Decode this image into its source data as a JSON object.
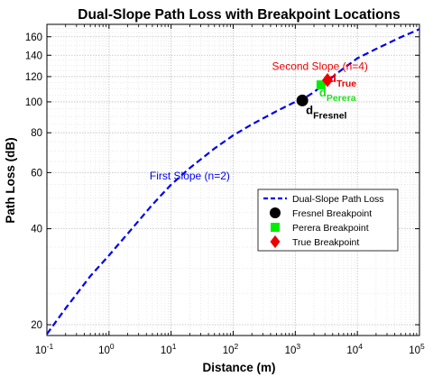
{
  "chart_data": {
    "type": "line",
    "title": "Dual-Slope Path Loss with Breakpoint Locations",
    "xlabel": "Distance (m)",
    "ylabel": "Path Loss (dB)",
    "xscale": "log",
    "yscale": "log",
    "xlim": [
      0.1,
      100000
    ],
    "ylim": [
      18.5,
      175
    ],
    "grid": true,
    "grid_minor": true,
    "x_ticks": [
      {
        "value": 0.1,
        "base": "10",
        "exp": "-1"
      },
      {
        "value": 1,
        "base": "10",
        "exp": "0"
      },
      {
        "value": 10,
        "base": "10",
        "exp": "1"
      },
      {
        "value": 100,
        "base": "10",
        "exp": "2"
      },
      {
        "value": 1000,
        "base": "10",
        "exp": "3"
      },
      {
        "value": 10000,
        "base": "10",
        "exp": "4"
      },
      {
        "value": 100000,
        "base": "10",
        "exp": "5"
      }
    ],
    "y_ticks": [
      20,
      40,
      60,
      80,
      100,
      120,
      140,
      160
    ],
    "series": [
      {
        "name": "Dual-Slope Path Loss",
        "style": "dashed",
        "color": "#0000ee",
        "points": [
          [
            0.1,
            18.7
          ],
          [
            0.2,
            22.5
          ],
          [
            0.5,
            28.4
          ],
          [
            1,
            33.0
          ],
          [
            2,
            38.6
          ],
          [
            5,
            47.6
          ],
          [
            10,
            55.0
          ],
          [
            20,
            62.0
          ],
          [
            50,
            71.4
          ],
          [
            100,
            78.5
          ],
          [
            200,
            85.0
          ],
          [
            500,
            93.5
          ],
          [
            1000,
            100.0
          ],
          [
            1500,
            103.5
          ],
          [
            2000,
            107.3
          ],
          [
            3000,
            114.5
          ],
          [
            5000,
            124.0
          ],
          [
            10000,
            137.0
          ],
          [
            20000,
            146.5
          ],
          [
            50000,
            159.5
          ],
          [
            100000,
            169.0
          ]
        ]
      }
    ],
    "markers": [
      {
        "name": "Fresnel Breakpoint",
        "x": 1300,
        "y": 101,
        "shape": "circle",
        "color": "#000000",
        "label_main": "d",
        "label_sub": "Fresnel",
        "label_color": "#000000"
      },
      {
        "name": "Perera Breakpoint",
        "x": 2600,
        "y": 113,
        "shape": "square",
        "color": "#00ee00",
        "label_main": "d",
        "label_sub": "Perera",
        "label_color": "#22dd22"
      },
      {
        "name": "True Breakpoint",
        "x": 3300,
        "y": 117,
        "shape": "diamond",
        "color": "#ee0000",
        "label_main": "d",
        "label_sub": "True",
        "label_color": "#ee0000"
      }
    ],
    "annotations": [
      {
        "text": "First Slope (n=2)",
        "x": 20,
        "y": 57,
        "color": "#0000ee"
      },
      {
        "text": "Second Slope (n=4)",
        "x": 2500,
        "y": 126,
        "color": "#ee0000"
      }
    ],
    "legend": {
      "placement": "right-center",
      "entries": [
        {
          "label": "Dual-Slope Path Loss",
          "shape": "dashed-line",
          "color": "#0000ee"
        },
        {
          "label": "Fresnel Breakpoint",
          "shape": "circle",
          "color": "#000000"
        },
        {
          "label": "Perera Breakpoint",
          "shape": "square",
          "color": "#00ee00"
        },
        {
          "label": "True Breakpoint",
          "shape": "diamond",
          "color": "#ee0000"
        }
      ]
    }
  }
}
